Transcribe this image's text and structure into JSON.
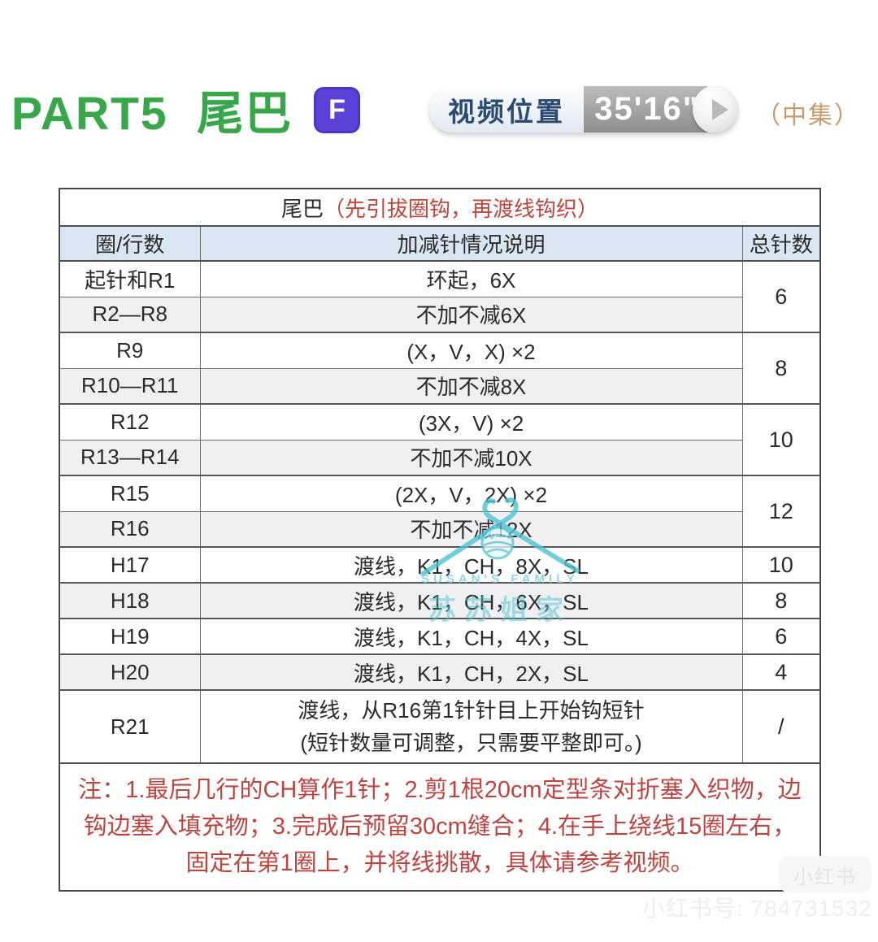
{
  "header": {
    "part_title": "PART5  尾巴",
    "badge_letter": "F",
    "video_label": "视频位置",
    "video_time": "35'16\"",
    "episode": "（中集）"
  },
  "table": {
    "title_main": "尾巴",
    "title_note": "（先引拔圈钩，再渡线钩织）",
    "columns": [
      "圈/行数",
      "加减针情况说明",
      "总针数"
    ],
    "rows": [
      {
        "round": "起针和R1",
        "desc": "环起，6X",
        "total": "6",
        "span": 2
      },
      {
        "round": "R2—R8",
        "desc": "不加不减6X"
      },
      {
        "round": "R9",
        "desc": "(X，V，X) ×2",
        "total": "8",
        "span": 2
      },
      {
        "round": "R10—R11",
        "desc": "不加不减8X"
      },
      {
        "round": "R12",
        "desc": "(3X，V) ×2",
        "total": "10",
        "span": 2
      },
      {
        "round": "R13—R14",
        "desc": "不加不减10X"
      },
      {
        "round": "R15",
        "desc": "(2X，V，2X) ×2",
        "total": "12",
        "span": 2
      },
      {
        "round": "R16",
        "desc": "不加不减12X"
      },
      {
        "round": "H17",
        "desc": "渡线，K1，CH，8X，SL",
        "total": "10"
      },
      {
        "round": "H18",
        "desc": "渡线，K1，CH，6X，SL",
        "total": "8"
      },
      {
        "round": "H19",
        "desc": "渡线，K1，CH，4X，SL",
        "total": "6"
      },
      {
        "round": "H20",
        "desc": "渡线，K1，CH，2X，SL",
        "total": "4"
      },
      {
        "round": "R21",
        "desc": "渡线，从R16第1针针目上开始钩短针\n(短针数量可调整，只需要平整即可。)",
        "total": "/"
      }
    ],
    "note": "注：1.最后几行的CH算作1针；2.剪1根20cm定型条对折塞入织物，边钩边塞入填充物；3.完成后预留30cm缝合；4.在手上绕线15圈左右，固定在第1圈上，并将线挑散，具体请参考视频。"
  },
  "watermark": {
    "brand_en": "SUSAN'S  FAMILY",
    "brand_cn": "苏苏姐家",
    "hook_color": "#4fc3d2"
  },
  "footer_watermark": {
    "badge": "小红书",
    "id_text": "小红书号: 784731532"
  },
  "colors": {
    "title_green": "#3aa64b",
    "badge_purple": "#5c41d8",
    "video_label_navy": "#2b4a72",
    "episode_tan": "#c89a6e",
    "header_blue": "#d9e6f2",
    "row_shade": "#f0eff1",
    "note_red": "#bf4440",
    "watermark_teal": "#55c5d5"
  }
}
